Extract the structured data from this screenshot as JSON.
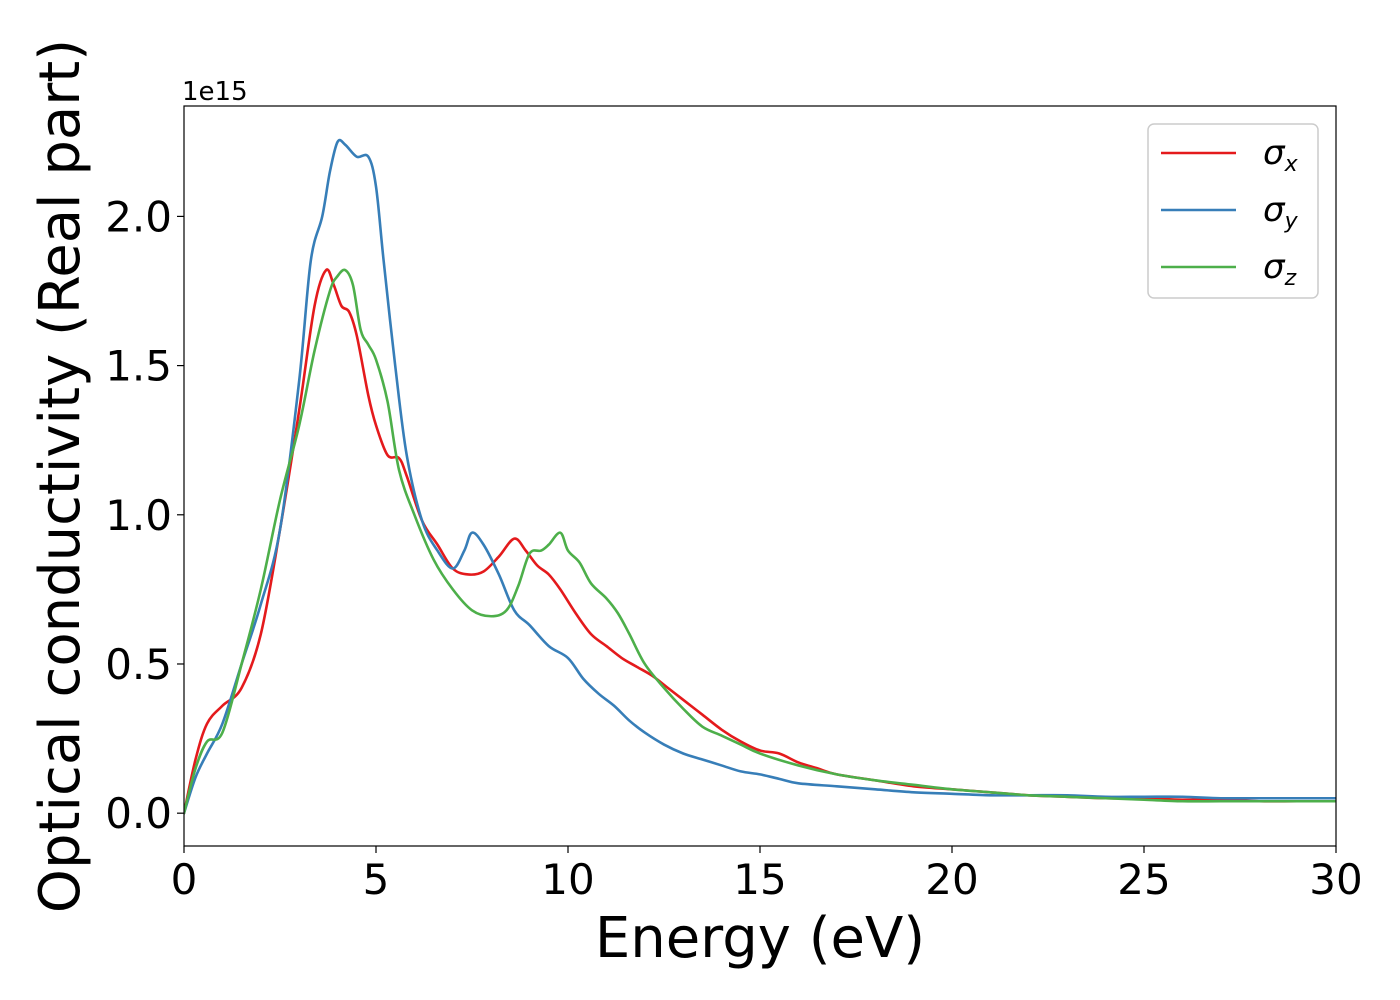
{
  "chart_data": {
    "type": "line",
    "xlabel": "Energy (eV)",
    "ylabel": "Optical conductivity (Real part)",
    "y_offset_label": "1e15",
    "xlim": [
      0,
      30
    ],
    "ylim": [
      -0.11,
      2.37
    ],
    "xticks": [
      0,
      5,
      10,
      15,
      20,
      25,
      30
    ],
    "xtick_labels": [
      "0",
      "5",
      "10",
      "15",
      "20",
      "25",
      "30"
    ],
    "yticks": [
      0.0,
      0.5,
      1.0,
      1.5,
      2.0
    ],
    "ytick_labels": [
      "0.0",
      "0.5",
      "1.0",
      "1.5",
      "2.0"
    ],
    "grid": false,
    "legend_position": "top-right",
    "series": [
      {
        "name": "σx",
        "symbol": "σ",
        "subscript": "x",
        "color": "#e41a1c",
        "x": [
          0,
          0.3,
          0.6,
          1.0,
          1.5,
          2.0,
          2.5,
          3.0,
          3.4,
          3.7,
          3.9,
          4.1,
          4.3,
          4.5,
          4.8,
          5.0,
          5.3,
          5.6,
          5.8,
          6.2,
          6.6,
          7.0,
          7.4,
          7.8,
          8.2,
          8.6,
          8.9,
          9.2,
          9.5,
          9.8,
          10.2,
          10.6,
          11.0,
          11.4,
          11.8,
          12.2,
          12.6,
          13.0,
          13.5,
          14.0,
          14.5,
          15.0,
          15.5,
          16.0,
          16.5,
          17.0,
          18.0,
          19.0,
          20.0,
          21.0,
          22.0,
          23.0,
          24.0,
          25.0,
          26.0,
          27.0,
          28.0,
          29.0,
          30.0
        ],
        "y": [
          0.0,
          0.18,
          0.3,
          0.36,
          0.42,
          0.6,
          0.95,
          1.35,
          1.7,
          1.82,
          1.77,
          1.7,
          1.68,
          1.6,
          1.4,
          1.3,
          1.2,
          1.19,
          1.13,
          0.98,
          0.9,
          0.82,
          0.8,
          0.81,
          0.86,
          0.92,
          0.88,
          0.83,
          0.8,
          0.75,
          0.67,
          0.6,
          0.56,
          0.52,
          0.49,
          0.46,
          0.42,
          0.38,
          0.33,
          0.28,
          0.24,
          0.21,
          0.2,
          0.17,
          0.15,
          0.13,
          0.11,
          0.09,
          0.08,
          0.07,
          0.06,
          0.055,
          0.05,
          0.05,
          0.045,
          0.045,
          0.04,
          0.04,
          0.04
        ]
      },
      {
        "name": "σy",
        "symbol": "σ",
        "subscript": "y",
        "color": "#377eb8",
        "x": [
          0,
          0.3,
          0.6,
          1.0,
          1.5,
          2.0,
          2.5,
          3.0,
          3.3,
          3.6,
          3.8,
          4.0,
          4.2,
          4.5,
          4.8,
          5.0,
          5.2,
          5.5,
          5.8,
          6.2,
          6.6,
          7.0,
          7.3,
          7.5,
          7.8,
          8.2,
          8.6,
          9.0,
          9.5,
          10.0,
          10.4,
          10.8,
          11.2,
          11.6,
          12.0,
          12.5,
          13.0,
          13.5,
          14.0,
          14.5,
          15.0,
          15.5,
          16.0,
          17.0,
          18.0,
          19.0,
          20.0,
          21.0,
          22.0,
          23.0,
          24.0,
          25.0,
          26.0,
          27.0,
          28.0,
          29.0,
          30.0
        ],
        "y": [
          0.0,
          0.12,
          0.2,
          0.3,
          0.5,
          0.7,
          0.95,
          1.45,
          1.85,
          2.0,
          2.15,
          2.25,
          2.24,
          2.2,
          2.2,
          2.1,
          1.85,
          1.5,
          1.2,
          0.98,
          0.88,
          0.82,
          0.88,
          0.94,
          0.9,
          0.8,
          0.68,
          0.63,
          0.56,
          0.52,
          0.45,
          0.4,
          0.36,
          0.31,
          0.27,
          0.23,
          0.2,
          0.18,
          0.16,
          0.14,
          0.13,
          0.115,
          0.1,
          0.09,
          0.08,
          0.07,
          0.065,
          0.06,
          0.06,
          0.06,
          0.055,
          0.055,
          0.055,
          0.05,
          0.05,
          0.05,
          0.05
        ]
      },
      {
        "name": "σz",
        "symbol": "σ",
        "subscript": "z",
        "color": "#4daf4a",
        "x": [
          0,
          0.3,
          0.6,
          1.0,
          1.5,
          2.0,
          2.5,
          3.0,
          3.4,
          3.8,
          4.0,
          4.2,
          4.4,
          4.6,
          4.8,
          5.0,
          5.3,
          5.6,
          6.0,
          6.5,
          7.0,
          7.5,
          8.0,
          8.4,
          8.7,
          9.0,
          9.3,
          9.5,
          9.8,
          10.0,
          10.3,
          10.6,
          11.0,
          11.3,
          11.6,
          12.0,
          12.5,
          13.0,
          13.5,
          14.0,
          14.5,
          15.0,
          16.0,
          17.0,
          18.0,
          19.0,
          20.0,
          21.0,
          22.0,
          23.0,
          24.0,
          25.0,
          26.0,
          27.0,
          28.0,
          29.0,
          30.0
        ],
        "y": [
          0.0,
          0.15,
          0.24,
          0.27,
          0.5,
          0.75,
          1.05,
          1.3,
          1.55,
          1.75,
          1.8,
          1.82,
          1.77,
          1.62,
          1.57,
          1.52,
          1.38,
          1.15,
          1.0,
          0.85,
          0.75,
          0.68,
          0.66,
          0.68,
          0.76,
          0.87,
          0.88,
          0.9,
          0.94,
          0.88,
          0.84,
          0.77,
          0.72,
          0.67,
          0.6,
          0.5,
          0.42,
          0.35,
          0.29,
          0.26,
          0.23,
          0.2,
          0.16,
          0.13,
          0.11,
          0.095,
          0.08,
          0.07,
          0.06,
          0.055,
          0.05,
          0.045,
          0.04,
          0.04,
          0.04,
          0.04,
          0.04
        ]
      }
    ]
  }
}
